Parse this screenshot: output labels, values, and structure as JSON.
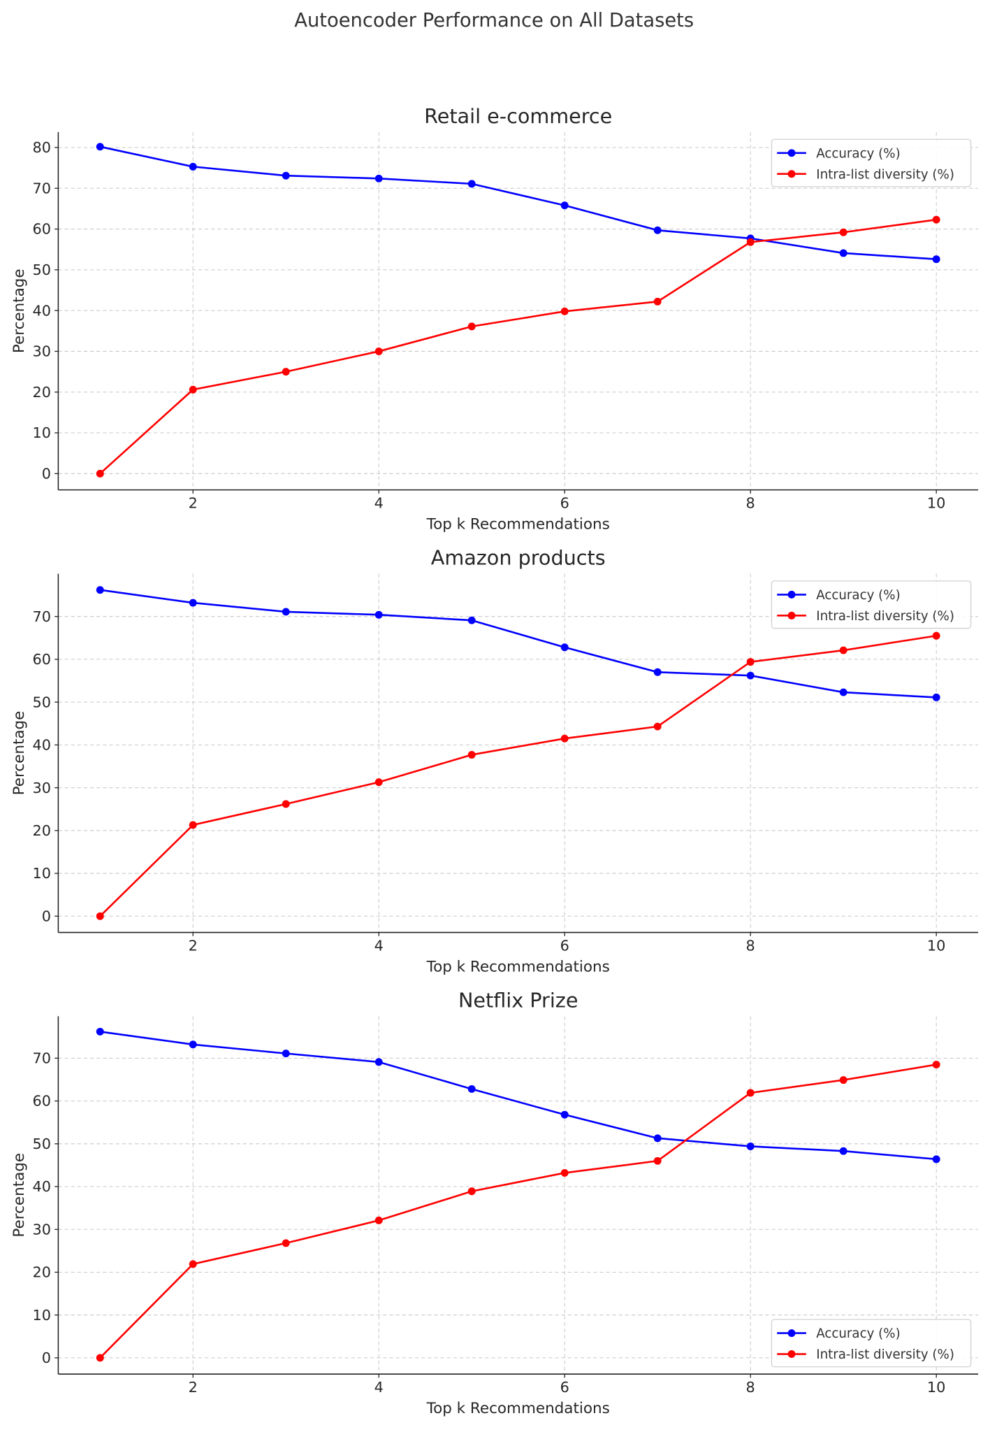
{
  "suptitle": "Autoencoder Performance on All Datasets",
  "chart_data": [
    {
      "type": "line",
      "title": "Retail e-commerce",
      "xlabel": "Top k Recommendations",
      "ylabel": "Percentage",
      "x": [
        1,
        2,
        3,
        4,
        5,
        6,
        7,
        8,
        9,
        10
      ],
      "xticks": [
        2,
        4,
        6,
        8,
        10
      ],
      "yticks": [
        0,
        10,
        20,
        30,
        40,
        50,
        60,
        70,
        80
      ],
      "xlim": [
        0.55,
        10.45
      ],
      "ylim": [
        -4.0,
        83.8
      ],
      "grid": true,
      "legend": "top-right",
      "series": [
        {
          "name": "Accuracy (%)",
          "color": "#0000ff",
          "values": [
            80.2,
            75.3,
            73.1,
            72.4,
            71.1,
            65.8,
            59.7,
            57.7,
            54.1,
            52.6
          ]
        },
        {
          "name": "Intra-list diversity (%)",
          "color": "#ff0000",
          "values": [
            0,
            20.6,
            25.0,
            30.0,
            36.1,
            39.8,
            42.2,
            56.8,
            59.2,
            62.3
          ]
        }
      ]
    },
    {
      "type": "line",
      "title": "Amazon products",
      "xlabel": "Top k Recommendations",
      "ylabel": "Percentage",
      "x": [
        1,
        2,
        3,
        4,
        5,
        6,
        7,
        8,
        9,
        10
      ],
      "xticks": [
        2,
        4,
        6,
        8,
        10
      ],
      "yticks": [
        0,
        10,
        20,
        30,
        40,
        50,
        60,
        70
      ],
      "xlim": [
        0.55,
        10.45
      ],
      "ylim": [
        -3.8,
        80.0
      ],
      "grid": true,
      "legend": "top-right",
      "series": [
        {
          "name": "Accuracy (%)",
          "color": "#0000ff",
          "values": [
            76.2,
            73.2,
            71.1,
            70.4,
            69.1,
            62.8,
            57.0,
            56.2,
            52.3,
            51.1
          ]
        },
        {
          "name": "Intra-list diversity (%)",
          "color": "#ff0000",
          "values": [
            0,
            21.3,
            26.2,
            31.3,
            37.7,
            41.5,
            44.3,
            59.4,
            62.1,
            65.5
          ]
        }
      ]
    },
    {
      "type": "line",
      "title": "Netflix Prize",
      "xlabel": "Top k Recommendations",
      "ylabel": "Percentage",
      "x": [
        1,
        2,
        3,
        4,
        5,
        6,
        7,
        8,
        9,
        10
      ],
      "xticks": [
        2,
        4,
        6,
        8,
        10
      ],
      "yticks": [
        0,
        10,
        20,
        30,
        40,
        50,
        60,
        70
      ],
      "xlim": [
        0.55,
        10.45
      ],
      "ylim": [
        -3.8,
        79.8
      ],
      "grid": true,
      "legend": "bottom-right",
      "series": [
        {
          "name": "Accuracy (%)",
          "color": "#0000ff",
          "values": [
            76.2,
            73.2,
            71.1,
            69.1,
            62.8,
            56.8,
            51.3,
            49.4,
            48.3,
            46.4
          ]
        },
        {
          "name": "Intra-list diversity (%)",
          "color": "#ff0000",
          "values": [
            0,
            21.9,
            26.8,
            32.1,
            38.9,
            43.2,
            46.0,
            61.9,
            64.9,
            68.5
          ]
        }
      ]
    }
  ]
}
